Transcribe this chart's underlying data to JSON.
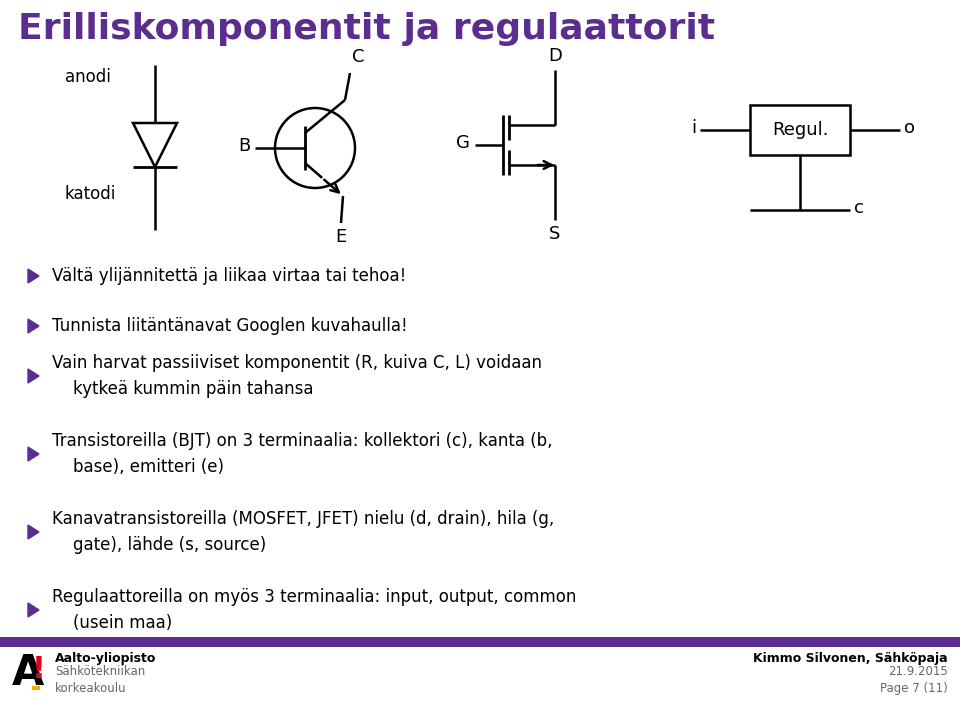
{
  "title": "Erilliskomponentit ja regulaattorit",
  "title_color": "#5b2d8e",
  "bg_color": "#ffffff",
  "bullet_color": "#5b2d8e",
  "bullets": [
    "Vältä ylijännitettä ja liikaa virtaa tai tehoa!",
    "Tunnista liitäntänavat Googlen kuvahaulla!",
    "Vain harvat passiiviset komponentit (R, kuiva C, L) voidaan\n    kytkeä kummin päin tahansa",
    "Transistoreilla (BJT) on 3 terminaalia: kollektori (c), kanta (b,\n    base), emitteri (e)",
    "Kanavatransistoreilla (MOSFET, JFET) nielu (d, drain), hila (g,\n    gate), lähde (s, source)",
    "Regulaattoreilla on myös 3 terminaalia: input, output, common\n    (usein maa)"
  ],
  "footer_bar_color": "#5b2d8e",
  "footer_left_bold": "Aalto-yliopisto",
  "footer_left_sub": "Sähkötekniikan\nkorkeakoulu",
  "footer_right_bold": "Kimmo Silvonen, Sähköpaja",
  "footer_right_sub": "21.9.2015\nPage 7 (11)"
}
